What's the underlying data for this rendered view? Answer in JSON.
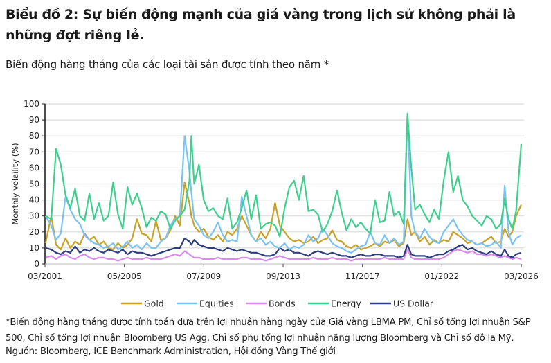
{
  "header": {
    "title": "Biểu đồ 2: Sự biến động mạnh của giá vàng trong lịch sử không phải là những đợt riêng lẻ.",
    "subtitle": "Biến động hàng tháng của các loại tài sản được tính theo năm *"
  },
  "footer": {
    "footnote": "*Biến động hàng tháng được tính toán dựa trên lợi nhuận hàng ngày của Giá vàng LBMA PM, Chỉ số tổng lợi nhuận S&P 500, Chỉ số tổng lợi nhuận Bloomberg US Agg, Chỉ số phụ tổng lợi nhuận năng lượng Bloomberg và Chỉ số đô la Mỹ.",
    "source": "Nguồn: Bloomberg, ICE Benchmark Administration, Hội đồng Vàng Thế giới"
  },
  "chart_data": {
    "type": "line",
    "title": "Biến động hàng tháng của các loại tài sản được tính theo năm *",
    "xlabel": "",
    "ylabel": "Monthly volaility (%)",
    "ylim": [
      0,
      100
    ],
    "yticks": [
      0,
      10,
      20,
      30,
      40,
      50,
      60,
      70,
      80,
      90,
      100
    ],
    "xticks": [
      "03/2001",
      "05/2005",
      "07/2009",
      "09/2013",
      "11/2017",
      "01/2022",
      "03/2026"
    ],
    "xrange": [
      2001.17,
      2026.17
    ],
    "grid": true,
    "legend_position": "bottom",
    "x": [
      2001.2,
      2001.5,
      2001.75,
      2002.0,
      2002.25,
      2002.5,
      2002.75,
      2003.0,
      2003.25,
      2003.5,
      2003.75,
      2004.0,
      2004.25,
      2004.5,
      2004.75,
      2005.0,
      2005.25,
      2005.5,
      2005.75,
      2006.0,
      2006.25,
      2006.5,
      2006.75,
      2007.0,
      2007.25,
      2007.5,
      2007.75,
      2008.0,
      2008.25,
      2008.5,
      2008.75,
      2008.85,
      2009.0,
      2009.25,
      2009.5,
      2009.75,
      2010.0,
      2010.25,
      2010.5,
      2010.75,
      2011.0,
      2011.25,
      2011.5,
      2011.75,
      2012.0,
      2012.25,
      2012.5,
      2012.75,
      2013.0,
      2013.25,
      2013.5,
      2013.75,
      2014.0,
      2014.25,
      2014.5,
      2014.75,
      2015.0,
      2015.25,
      2015.5,
      2015.75,
      2016.0,
      2016.25,
      2016.5,
      2016.75,
      2017.0,
      2017.25,
      2017.5,
      2017.75,
      2018.0,
      2018.25,
      2018.5,
      2018.75,
      2019.0,
      2019.25,
      2019.5,
      2019.75,
      2020.0,
      2020.2,
      2020.4,
      2020.6,
      2020.85,
      2021.1,
      2021.35,
      2021.6,
      2021.85,
      2022.1,
      2022.35,
      2022.6,
      2022.85,
      2023.1,
      2023.35,
      2023.6,
      2023.85,
      2024.1,
      2024.35,
      2024.6,
      2024.85,
      2025.1,
      2025.3,
      2025.5,
      2025.7,
      2025.9,
      2026.17
    ],
    "series": [
      {
        "name": "Gold",
        "color": "#C9A227",
        "values": [
          13,
          30,
          12,
          9,
          16,
          10,
          14,
          12,
          19,
          15,
          17,
          12,
          14,
          10,
          9,
          13,
          10,
          12,
          16,
          28,
          19,
          18,
          14,
          27,
          15,
          16,
          21,
          30,
          24,
          51,
          38,
          30,
          24,
          20,
          22,
          17,
          15,
          18,
          14,
          20,
          18,
          22,
          30,
          24,
          18,
          14,
          20,
          16,
          22,
          38,
          24,
          20,
          16,
          14,
          15,
          13,
          14,
          17,
          13,
          15,
          16,
          21,
          15,
          14,
          11,
          10,
          12,
          9,
          10,
          11,
          13,
          11,
          14,
          13,
          15,
          11,
          13,
          28,
          18,
          20,
          14,
          17,
          12,
          15,
          13,
          15,
          14,
          20,
          18,
          16,
          13,
          14,
          12,
          13,
          15,
          17,
          13,
          14,
          22,
          17,
          20,
          30,
          37
        ]
      },
      {
        "name": "Equities",
        "color": "#7CC3F5",
        "values": [
          30,
          24,
          15,
          19,
          42,
          34,
          28,
          25,
          18,
          15,
          13,
          12,
          10,
          11,
          13,
          9,
          11,
          14,
          10,
          12,
          9,
          13,
          10,
          10,
          14,
          16,
          24,
          28,
          30,
          80,
          58,
          45,
          28,
          24,
          18,
          16,
          20,
          26,
          18,
          14,
          15,
          14,
          42,
          30,
          18,
          14,
          16,
          12,
          14,
          11,
          10,
          13,
          9,
          11,
          10,
          12,
          18,
          14,
          16,
          22,
          18,
          13,
          11,
          10,
          8,
          7,
          9,
          11,
          12,
          20,
          13,
          12,
          18,
          13,
          16,
          12,
          14,
          94,
          30,
          20,
          16,
          22,
          17,
          14,
          13,
          20,
          24,
          28,
          22,
          18,
          15,
          14,
          12,
          13,
          11,
          12,
          14,
          10,
          49,
          20,
          12,
          16,
          18
        ]
      },
      {
        "name": "Bonds",
        "color": "#D98BF0",
        "values": [
          4,
          5,
          3,
          5,
          6,
          4,
          3,
          5,
          6,
          4,
          3,
          4,
          4,
          3,
          3,
          2,
          3,
          4,
          3,
          3,
          3,
          4,
          3,
          3,
          3,
          4,
          5,
          6,
          5,
          8,
          6,
          5,
          4,
          4,
          3,
          3,
          3,
          4,
          3,
          3,
          3,
          3,
          4,
          4,
          3,
          3,
          3,
          2,
          3,
          4,
          5,
          4,
          3,
          3,
          3,
          3,
          3,
          4,
          3,
          3,
          3,
          4,
          3,
          3,
          3,
          2,
          3,
          3,
          3,
          3,
          3,
          3,
          4,
          3,
          3,
          3,
          3,
          9,
          4,
          3,
          3,
          3,
          3,
          3,
          3,
          4,
          6,
          8,
          9,
          8,
          7,
          8,
          6,
          6,
          5,
          6,
          5,
          4,
          5,
          4,
          3,
          4,
          3
        ]
      },
      {
        "name": "Energy",
        "color": "#3FCF8E",
        "values": [
          30,
          28,
          72,
          62,
          43,
          35,
          47,
          30,
          27,
          44,
          28,
          38,
          27,
          30,
          51,
          31,
          22,
          48,
          37,
          44,
          35,
          23,
          29,
          27,
          33,
          31,
          22,
          27,
          30,
          34,
          52,
          80,
          50,
          62,
          40,
          33,
          35,
          30,
          28,
          41,
          22,
          26,
          35,
          46,
          28,
          43,
          22,
          25,
          26,
          24,
          17,
          35,
          48,
          52,
          40,
          55,
          33,
          34,
          31,
          20,
          25,
          33,
          46,
          32,
          21,
          28,
          23,
          26,
          22,
          19,
          40,
          26,
          27,
          45,
          30,
          33,
          25,
          94,
          60,
          34,
          37,
          31,
          26,
          34,
          28,
          52,
          70,
          45,
          55,
          40,
          36,
          30,
          27,
          24,
          30,
          28,
          22,
          25,
          41,
          28,
          22,
          33,
          75
        ]
      },
      {
        "name": "US Dollar",
        "color": "#2C3E7E",
        "values": [
          10,
          9,
          7,
          6,
          8,
          7,
          11,
          7,
          9,
          8,
          10,
          8,
          7,
          9,
          8,
          7,
          9,
          6,
          8,
          7,
          7,
          6,
          5,
          6,
          7,
          8,
          9,
          10,
          10,
          16,
          14,
          12,
          15,
          12,
          11,
          10,
          10,
          9,
          8,
          10,
          9,
          8,
          9,
          8,
          7,
          7,
          6,
          5,
          5,
          6,
          10,
          8,
          9,
          7,
          7,
          6,
          5,
          7,
          8,
          7,
          6,
          7,
          6,
          5,
          5,
          4,
          5,
          6,
          5,
          5,
          6,
          6,
          5,
          5,
          5,
          4,
          5,
          12,
          6,
          5,
          5,
          5,
          4,
          5,
          6,
          6,
          8,
          9,
          11,
          12,
          9,
          10,
          8,
          7,
          6,
          8,
          6,
          5,
          9,
          5,
          4,
          6,
          7
        ]
      }
    ]
  },
  "legend": {
    "items": [
      {
        "label": "Gold",
        "color": "#C9A227"
      },
      {
        "label": "Equities",
        "color": "#7CC3F5"
      },
      {
        "label": "Bonds",
        "color": "#D98BF0"
      },
      {
        "label": "Energy",
        "color": "#3FCF8E"
      },
      {
        "label": "US Dollar",
        "color": "#2C3E7E"
      }
    ]
  }
}
